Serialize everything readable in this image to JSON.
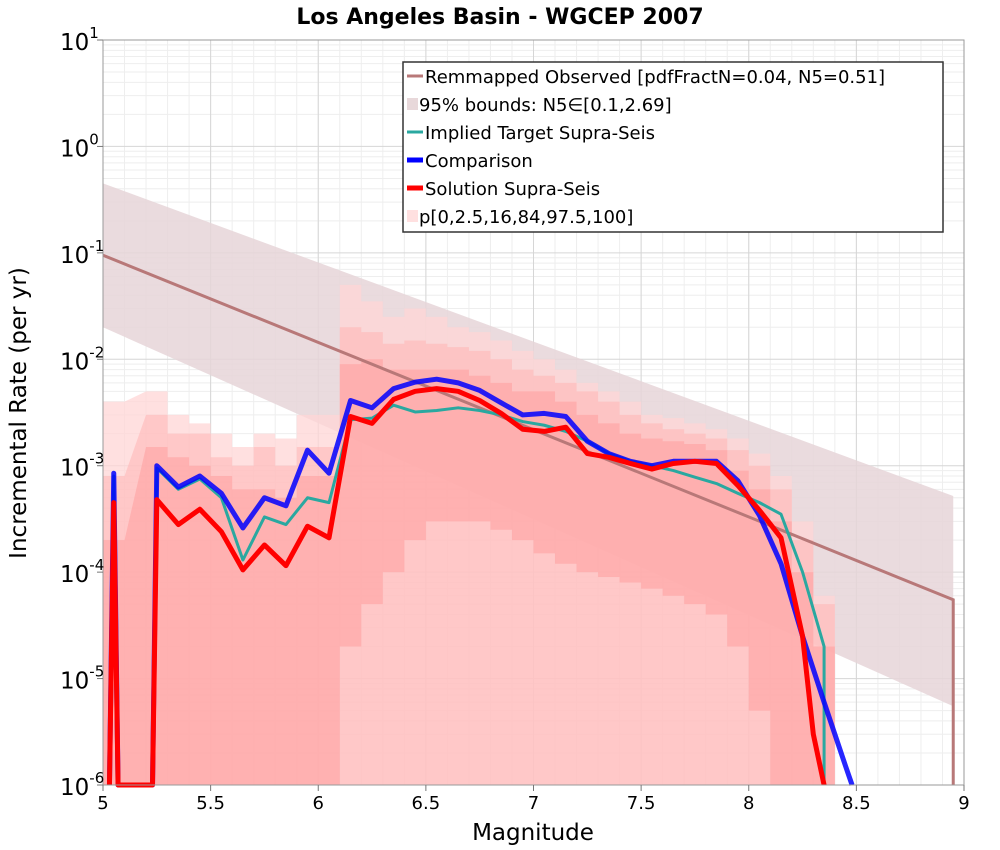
{
  "chart_data": {
    "type": "line",
    "title": "Los Angeles Basin - WGCEP 2007",
    "xlabel": "Magnitude",
    "ylabel": "Incremental Rate (per yr)",
    "xlim": [
      5,
      9
    ],
    "ylim": [
      1e-06,
      10
    ],
    "y_scale": "log",
    "x_ticks": [
      "5",
      "5.5",
      "6",
      "6.5",
      "7",
      "7.5",
      "8",
      "8.5",
      "9"
    ],
    "y_ticks": [
      {
        "base": "10",
        "exp": "1"
      },
      {
        "base": "10",
        "exp": "0"
      },
      {
        "base": "10",
        "exp": "-1"
      },
      {
        "base": "10",
        "exp": "-2"
      },
      {
        "base": "10",
        "exp": "-3"
      },
      {
        "base": "10",
        "exp": "-4"
      },
      {
        "base": "10",
        "exp": "-5"
      },
      {
        "base": "10",
        "exp": "-6"
      }
    ],
    "grid": true,
    "legend_position": "top-right",
    "legend": [
      {
        "label": "Remmapped Observed [pdfFractN=0.04, N5=0.51]",
        "kind": "line",
        "color": "#b87878"
      },
      {
        "label": "95% bounds: N5∈[0.1,2.69]",
        "kind": "band",
        "color": "#e8d8da"
      },
      {
        "label": "Implied Target Supra-Seis",
        "kind": "line",
        "color": "#2aa8a0"
      },
      {
        "label": "Comparison",
        "kind": "line",
        "color": "#0000ff"
      },
      {
        "label": "Solution Supra-Seis",
        "kind": "line",
        "color": "#ff0000"
      },
      {
        "label": "p[0,2.5,16,84,97.5,100]",
        "kind": "band",
        "color": "#ffe0e0"
      }
    ],
    "observed": {
      "name": "Remmapped Observed [pdfFractN=0.04, N5=0.51]",
      "color": "#b87878",
      "x": [
        5.0,
        8.95,
        8.95
      ],
      "y": [
        0.095,
        5.5e-05,
        1e-06
      ]
    },
    "observed_bounds": {
      "color": "#e6d5d8",
      "x": [
        5.0,
        8.95
      ],
      "upper": [
        0.45,
        0.00052
      ],
      "lower": [
        0.02,
        5.5e-06
      ]
    },
    "p_bands": {
      "x": [
        5.05,
        5.25,
        5.35,
        5.45,
        5.55,
        5.65,
        5.75,
        5.85,
        5.95,
        6.05,
        6.15,
        6.25,
        6.35,
        6.45,
        6.55,
        6.65,
        6.75,
        6.85,
        6.95,
        7.05,
        7.15,
        7.25,
        7.35,
        7.45,
        7.55,
        7.65,
        7.75,
        7.85,
        7.95,
        8.05,
        8.15,
        8.25,
        8.35
      ],
      "p0": [
        1e-06,
        1e-06,
        1e-06,
        1e-06,
        1e-06,
        1e-06,
        1e-06,
        1e-06,
        1e-06,
        1e-06,
        1e-06,
        1e-06,
        1e-06,
        1e-06,
        1e-06,
        1e-06,
        1e-06,
        1e-06,
        1e-06,
        1e-06,
        1e-06,
        1e-06,
        1e-06,
        1e-06,
        1e-06,
        1e-06,
        1e-06,
        1e-06,
        1e-06,
        1e-06,
        1e-06,
        1e-06,
        1e-06
      ],
      "p2_5": [
        1e-06,
        1e-06,
        1e-06,
        1e-06,
        1e-06,
        1e-06,
        1e-06,
        1e-06,
        1e-06,
        1e-06,
        1e-06,
        1e-06,
        1e-06,
        1e-06,
        1e-06,
        1e-06,
        1e-06,
        1e-06,
        1e-06,
        1e-06,
        1e-06,
        1e-06,
        1e-06,
        1e-06,
        1e-06,
        1e-06,
        1e-06,
        1e-06,
        1e-06,
        1e-06,
        1e-06,
        1e-06,
        1e-06
      ],
      "p16": [
        1e-06,
        1e-06,
        1e-06,
        1e-06,
        1e-06,
        1e-06,
        1e-06,
        1e-06,
        1e-06,
        1e-06,
        2e-05,
        5e-05,
        0.0001,
        0.0002,
        0.0003,
        0.0003,
        0.0003,
        0.00025,
        0.0002,
        0.00015,
        0.00012,
        0.0001,
        9e-05,
        8e-05,
        7e-05,
        6e-05,
        5e-05,
        4e-05,
        2e-05,
        5e-06,
        1e-06,
        1e-06,
        1e-06
      ],
      "p84": [
        0.0002,
        0.0015,
        0.0012,
        0.001,
        0.0008,
        0.0006,
        0.0006,
        0.0005,
        0.0008,
        0.0008,
        0.009,
        0.01,
        0.008,
        0.008,
        0.008,
        0.008,
        0.007,
        0.006,
        0.005,
        0.005,
        0.004,
        0.003,
        0.0025,
        0.002,
        0.0018,
        0.0017,
        0.0016,
        0.0014,
        0.0009,
        0.0006,
        0.0003,
        0.0001,
        2e-05
      ],
      "p97_5": [
        0.0008,
        0.003,
        0.002,
        0.002,
        0.0012,
        0.001,
        0.0015,
        0.001,
        0.0015,
        0.0015,
        0.02,
        0.018,
        0.014,
        0.015,
        0.014,
        0.013,
        0.012,
        0.01,
        0.008,
        0.007,
        0.006,
        0.005,
        0.004,
        0.003,
        0.0025,
        0.0022,
        0.002,
        0.0018,
        0.0014,
        0.001,
        0.0006,
        0.0002,
        5e-05
      ],
      "p100": [
        0.004,
        0.005,
        0.003,
        0.0025,
        0.002,
        0.0015,
        0.002,
        0.0018,
        0.003,
        0.003,
        0.05,
        0.035,
        0.025,
        0.03,
        0.025,
        0.02,
        0.018,
        0.015,
        0.012,
        0.01,
        0.008,
        0.006,
        0.005,
        0.004,
        0.003,
        0.0028,
        0.0025,
        0.0022,
        0.0018,
        0.0013,
        0.0008,
        0.0003,
        6e-05
      ]
    },
    "series": [
      {
        "name": "Implied Target Supra-Seis",
        "color": "#2aa8a0",
        "width": 3,
        "x": [
          5.03,
          5.05,
          5.07,
          5.23,
          5.25,
          5.35,
          5.45,
          5.55,
          5.65,
          5.75,
          5.85,
          5.95,
          6.05,
          6.15,
          6.25,
          6.35,
          6.45,
          6.55,
          6.65,
          6.75,
          6.85,
          6.95,
          7.05,
          7.15,
          7.25,
          7.35,
          7.45,
          7.55,
          7.65,
          7.75,
          7.85,
          7.95,
          8.05,
          8.15,
          8.25,
          8.35,
          8.35
        ],
        "y": [
          1e-06,
          0.0008,
          1e-06,
          1e-06,
          0.00095,
          0.0006,
          0.00075,
          0.0005,
          0.00013,
          0.00033,
          0.00028,
          0.0005,
          0.00045,
          0.0027,
          0.0028,
          0.0037,
          0.0032,
          0.0033,
          0.0035,
          0.0033,
          0.003,
          0.0026,
          0.0024,
          0.0021,
          0.0017,
          0.0013,
          0.0011,
          0.001,
          0.0009,
          0.00078,
          0.00068,
          0.00055,
          0.00045,
          0.00035,
          0.0001,
          2e-05,
          1e-06
        ]
      },
      {
        "name": "Comparison",
        "color": "#0000ff",
        "width": 5,
        "x": [
          5.03,
          5.05,
          5.07,
          5.23,
          5.25,
          5.35,
          5.45,
          5.55,
          5.65,
          5.75,
          5.85,
          5.95,
          6.05,
          6.15,
          6.25,
          6.35,
          6.45,
          6.55,
          6.65,
          6.75,
          6.85,
          6.95,
          7.05,
          7.15,
          7.25,
          7.35,
          7.45,
          7.55,
          7.65,
          7.75,
          7.85,
          7.95,
          8.05,
          8.15,
          8.25,
          8.35,
          8.45,
          8.48
        ],
        "y": [
          1e-06,
          0.00085,
          1e-06,
          1e-06,
          0.001,
          0.00063,
          0.0008,
          0.00055,
          0.00026,
          0.0005,
          0.00042,
          0.0014,
          0.00085,
          0.0041,
          0.0035,
          0.0053,
          0.0061,
          0.0065,
          0.006,
          0.0051,
          0.0039,
          0.003,
          0.0031,
          0.0029,
          0.0017,
          0.0013,
          0.0011,
          0.001,
          0.0011,
          0.0011,
          0.0011,
          0.00072,
          0.00034,
          0.00012,
          2.5e-05,
          6e-06,
          1.5e-06,
          1e-06
        ]
      },
      {
        "name": "Solution Supra-Seis",
        "color": "#ff0000",
        "width": 5,
        "x": [
          5.03,
          5.05,
          5.07,
          5.23,
          5.25,
          5.35,
          5.45,
          5.55,
          5.65,
          5.75,
          5.85,
          5.95,
          6.05,
          6.15,
          6.25,
          6.35,
          6.45,
          6.55,
          6.65,
          6.75,
          6.85,
          6.95,
          7.05,
          7.15,
          7.25,
          7.35,
          7.45,
          7.55,
          7.65,
          7.75,
          7.85,
          7.95,
          8.05,
          8.15,
          8.25,
          8.3,
          8.35
        ],
        "y": [
          1e-06,
          0.00045,
          1e-06,
          1e-06,
          0.00048,
          0.00028,
          0.00039,
          0.00024,
          0.000105,
          0.00018,
          0.000115,
          0.00027,
          0.00021,
          0.0029,
          0.0025,
          0.0042,
          0.005,
          0.0053,
          0.005,
          0.0041,
          0.0031,
          0.0022,
          0.0021,
          0.0023,
          0.0013,
          0.0012,
          0.00105,
          0.00093,
          0.00105,
          0.0011,
          0.00105,
          0.00065,
          0.00038,
          0.00021,
          2.5e-05,
          3e-06,
          1e-06
        ]
      }
    ]
  }
}
